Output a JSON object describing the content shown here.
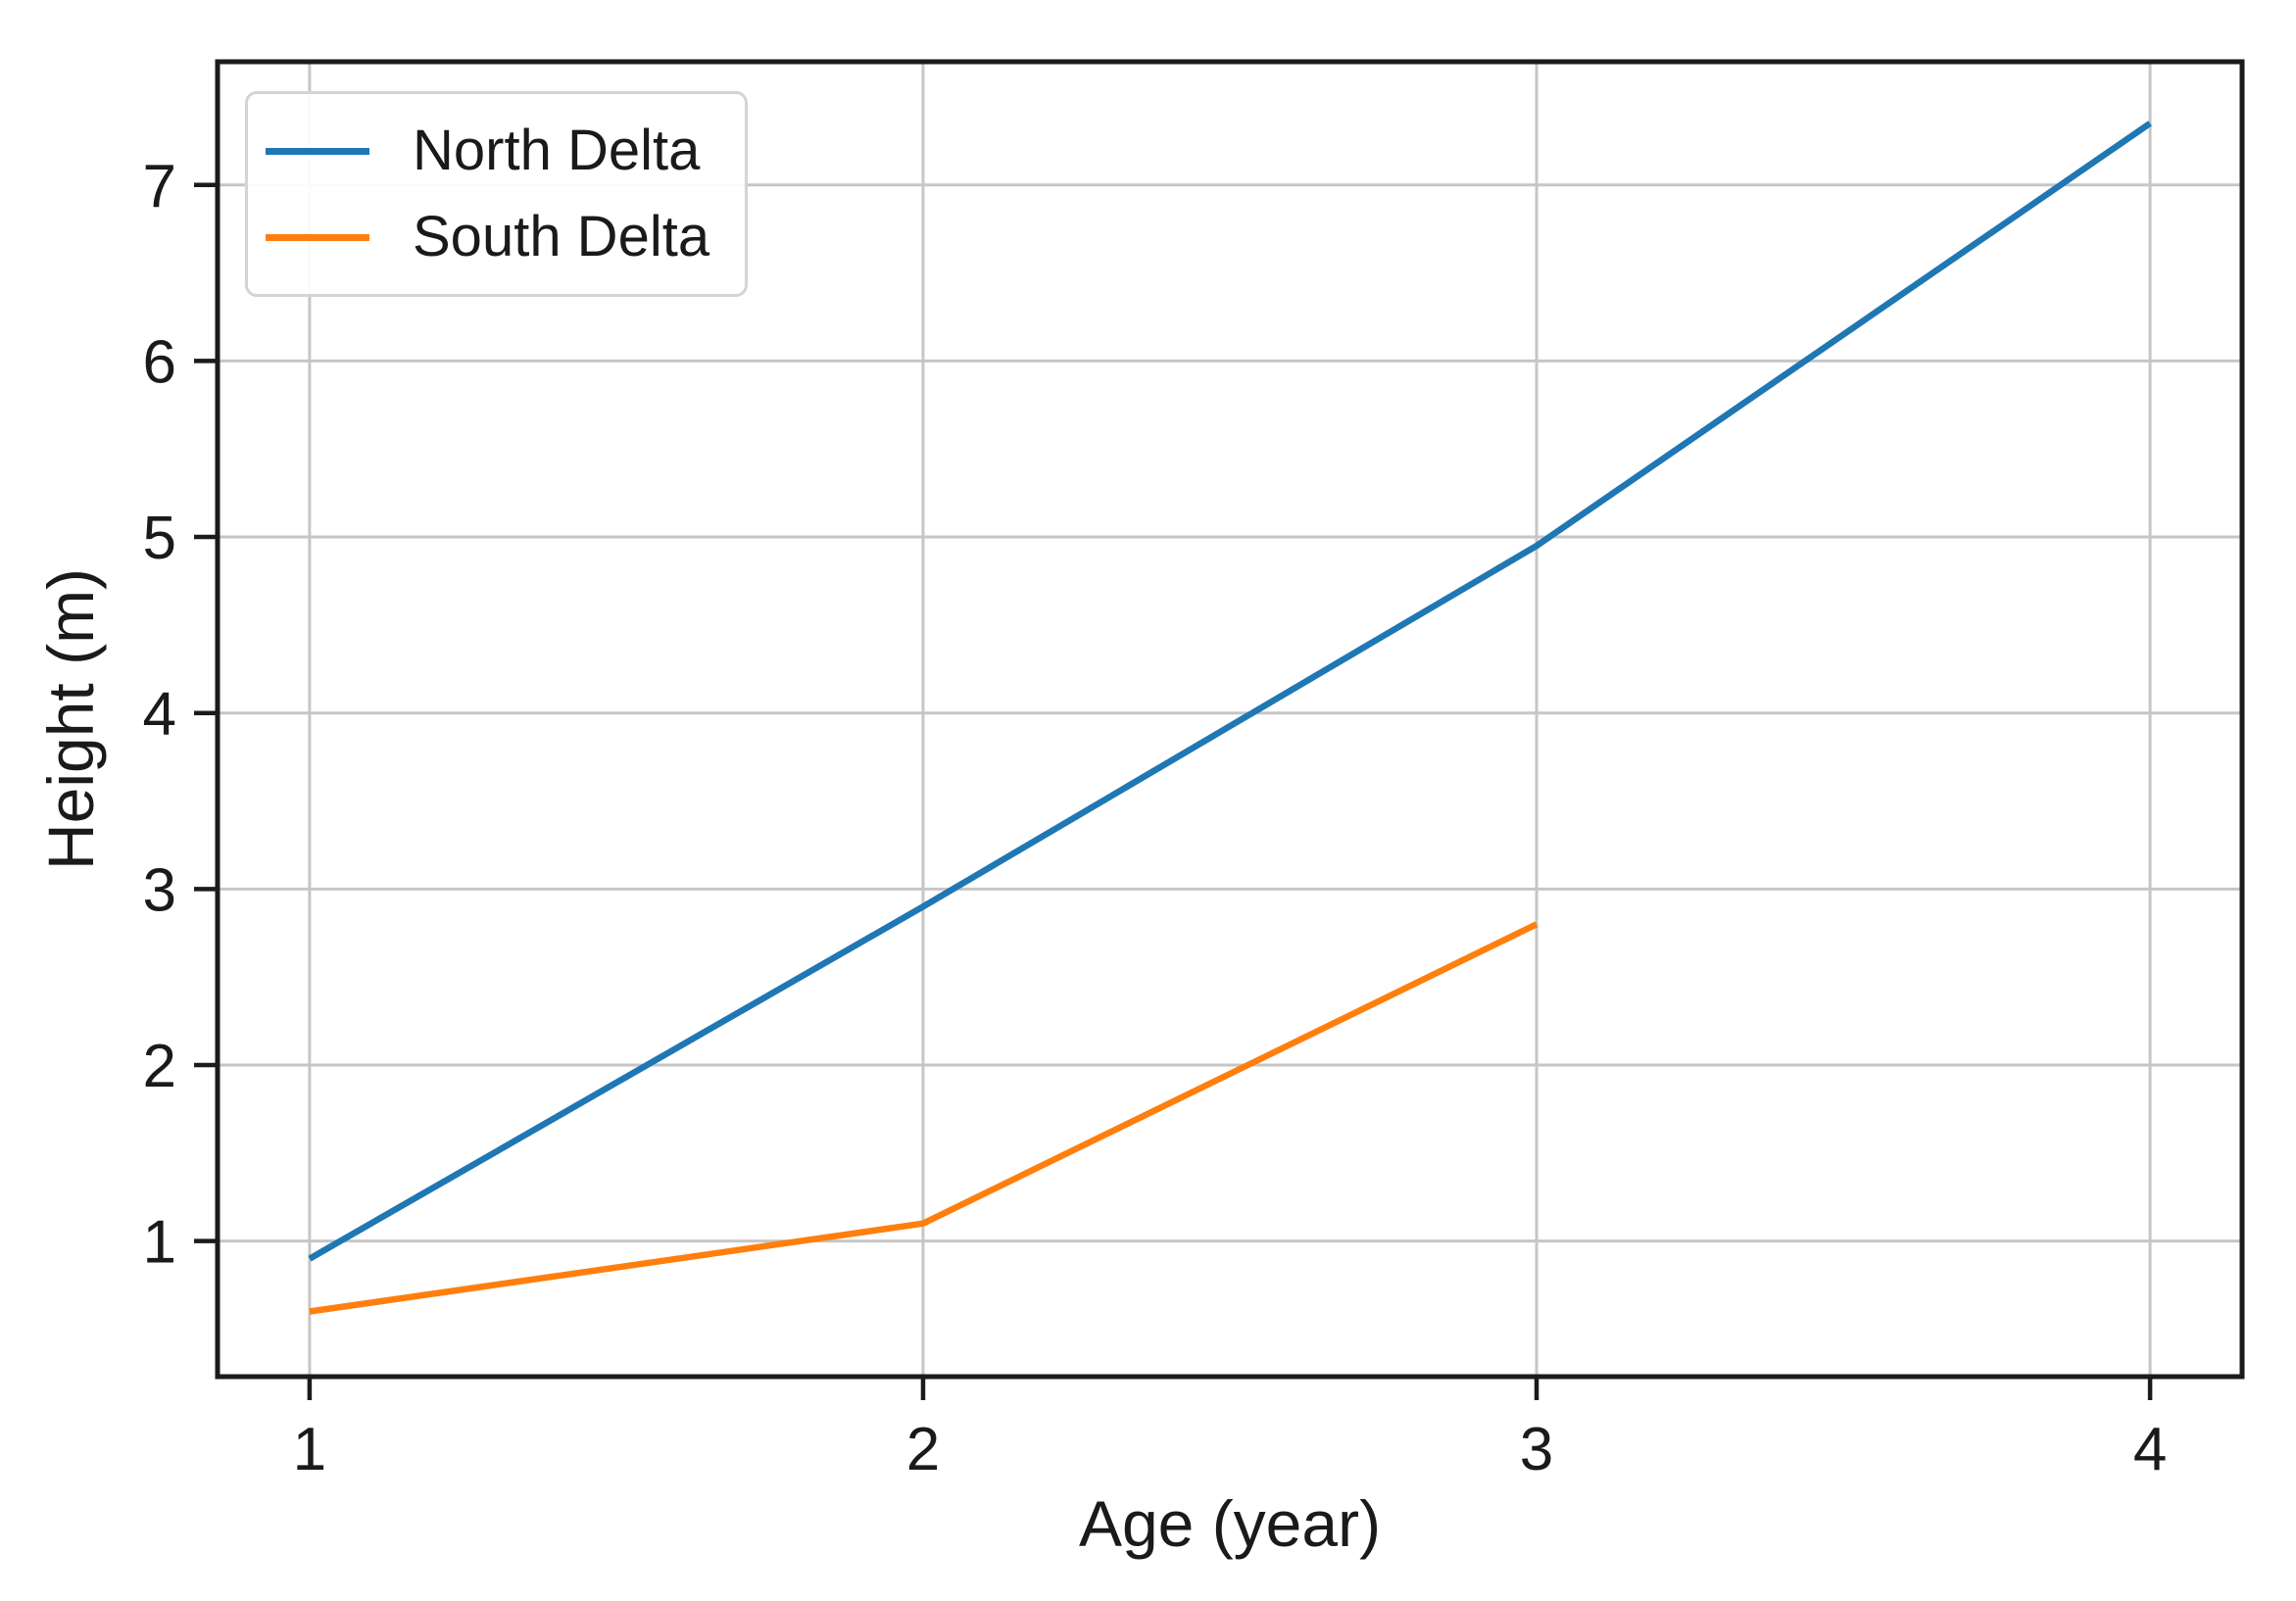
{
  "chart_data": {
    "type": "line",
    "title": "",
    "xlabel": "Age (year)",
    "ylabel": "Height (m)",
    "xticks": [
      1,
      2,
      3,
      4
    ],
    "yticks": [
      1,
      2,
      3,
      4,
      5,
      6,
      7
    ],
    "xlim": [
      0.85,
      4.15
    ],
    "ylim": [
      0.23,
      7.7
    ],
    "grid": true,
    "legend_position": "upper-left",
    "series": [
      {
        "name": "North Delta",
        "color": "#1f77b4",
        "x": [
          1,
          2,
          3,
          4
        ],
        "values": [
          0.9,
          2.9,
          4.95,
          7.35
        ]
      },
      {
        "name": "South Delta",
        "color": "#ff7f0e",
        "x": [
          1,
          2,
          3
        ],
        "values": [
          0.6,
          1.1,
          2.8
        ]
      }
    ],
    "style": {
      "background": "#ffffff",
      "grid_color": "#c6c6c6",
      "spine_color": "#1b1b1b",
      "text_color": "#1a1a1a",
      "legend_border_color": "#d4d4d4",
      "legend_background": "#ffffff"
    }
  }
}
